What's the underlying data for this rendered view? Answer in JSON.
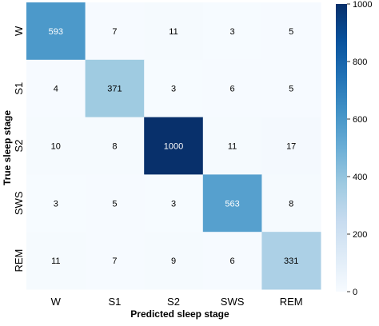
{
  "chart_data": {
    "type": "heatmap",
    "title": "",
    "xlabel": "Predicted sleep stage",
    "ylabel": "True sleep stage",
    "x_categories": [
      "W",
      "S1",
      "S2",
      "SWS",
      "REM"
    ],
    "y_categories": [
      "W",
      "S1",
      "S2",
      "SWS",
      "REM"
    ],
    "values": [
      [
        593,
        7,
        11,
        3,
        5
      ],
      [
        4,
        371,
        3,
        6,
        5
      ],
      [
        10,
        8,
        1000,
        11,
        17
      ],
      [
        3,
        5,
        3,
        563,
        8
      ],
      [
        11,
        7,
        9,
        6,
        331
      ]
    ],
    "colormap": "Blues",
    "value_range": [
      0,
      1000
    ],
    "colorbar_ticks": [
      0,
      200,
      400,
      600,
      800,
      1000
    ],
    "colorbar_tick_labels": [
      "0",
      "200",
      "400",
      "600",
      "800",
      "1000"
    ],
    "grid": false,
    "colors": {
      "low": "#f7fbff",
      "high": "#08306b",
      "text_on_light": "#000000",
      "text_on_dark": "#ffffff"
    }
  }
}
